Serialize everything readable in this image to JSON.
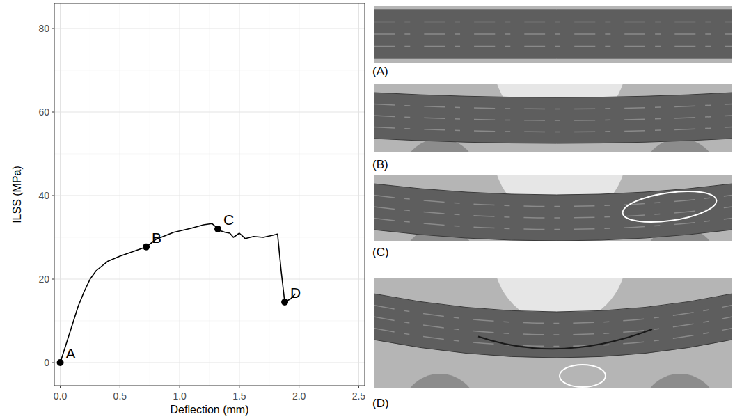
{
  "chart_data": {
    "type": "line",
    "x_label": "Deflection (mm)",
    "y_label": "ILSS (MPa)",
    "x": [
      0,
      0.05,
      0.1,
      0.15,
      0.2,
      0.25,
      0.3,
      0.4,
      0.5,
      0.55,
      0.6,
      0.72,
      0.8,
      0.95,
      1.1,
      1.2,
      1.27,
      1.3,
      1.32,
      1.35,
      1.38,
      1.42,
      1.45,
      1.5,
      1.55,
      1.62,
      1.7,
      1.78,
      1.82,
      1.85,
      1.88,
      1.93,
      1.97
    ],
    "values": [
      0,
      4.5,
      9,
      13.5,
      17,
      20,
      22,
      24.3,
      25.5,
      26,
      26.5,
      27.7,
      29.5,
      31.2,
      32.2,
      33,
      33.3,
      32.6,
      32,
      31.5,
      31.2,
      31,
      30,
      31,
      29.7,
      30.2,
      30,
      30.5,
      30.8,
      22,
      14.5,
      15.3,
      16.5
    ],
    "color": "#000000",
    "xlim": [
      -0.05,
      2.55
    ],
    "ylim": [
      -5.5,
      86
    ],
    "xticks": [
      {
        "value": 0,
        "label": "0.0"
      },
      {
        "value": 0.5,
        "label": "0.5"
      },
      {
        "value": 1,
        "label": "1.0"
      },
      {
        "value": 1.5,
        "label": "1.5"
      },
      {
        "value": 2,
        "label": "2.0"
      },
      {
        "value": 2.5,
        "label": "2.5"
      }
    ],
    "yticks": [
      0,
      20,
      40,
      60,
      80
    ],
    "grid": true,
    "annotations": [
      {
        "label": "A",
        "x": 0,
        "y": 0
      },
      {
        "label": "B",
        "x": 0.72,
        "y": 27.7
      },
      {
        "label": "C",
        "x": 1.32,
        "y": 32
      },
      {
        "label": "D",
        "x": 1.88,
        "y": 14.5
      }
    ]
  },
  "photos": [
    "(A)",
    "(B)",
    "(C)",
    "(D)"
  ]
}
